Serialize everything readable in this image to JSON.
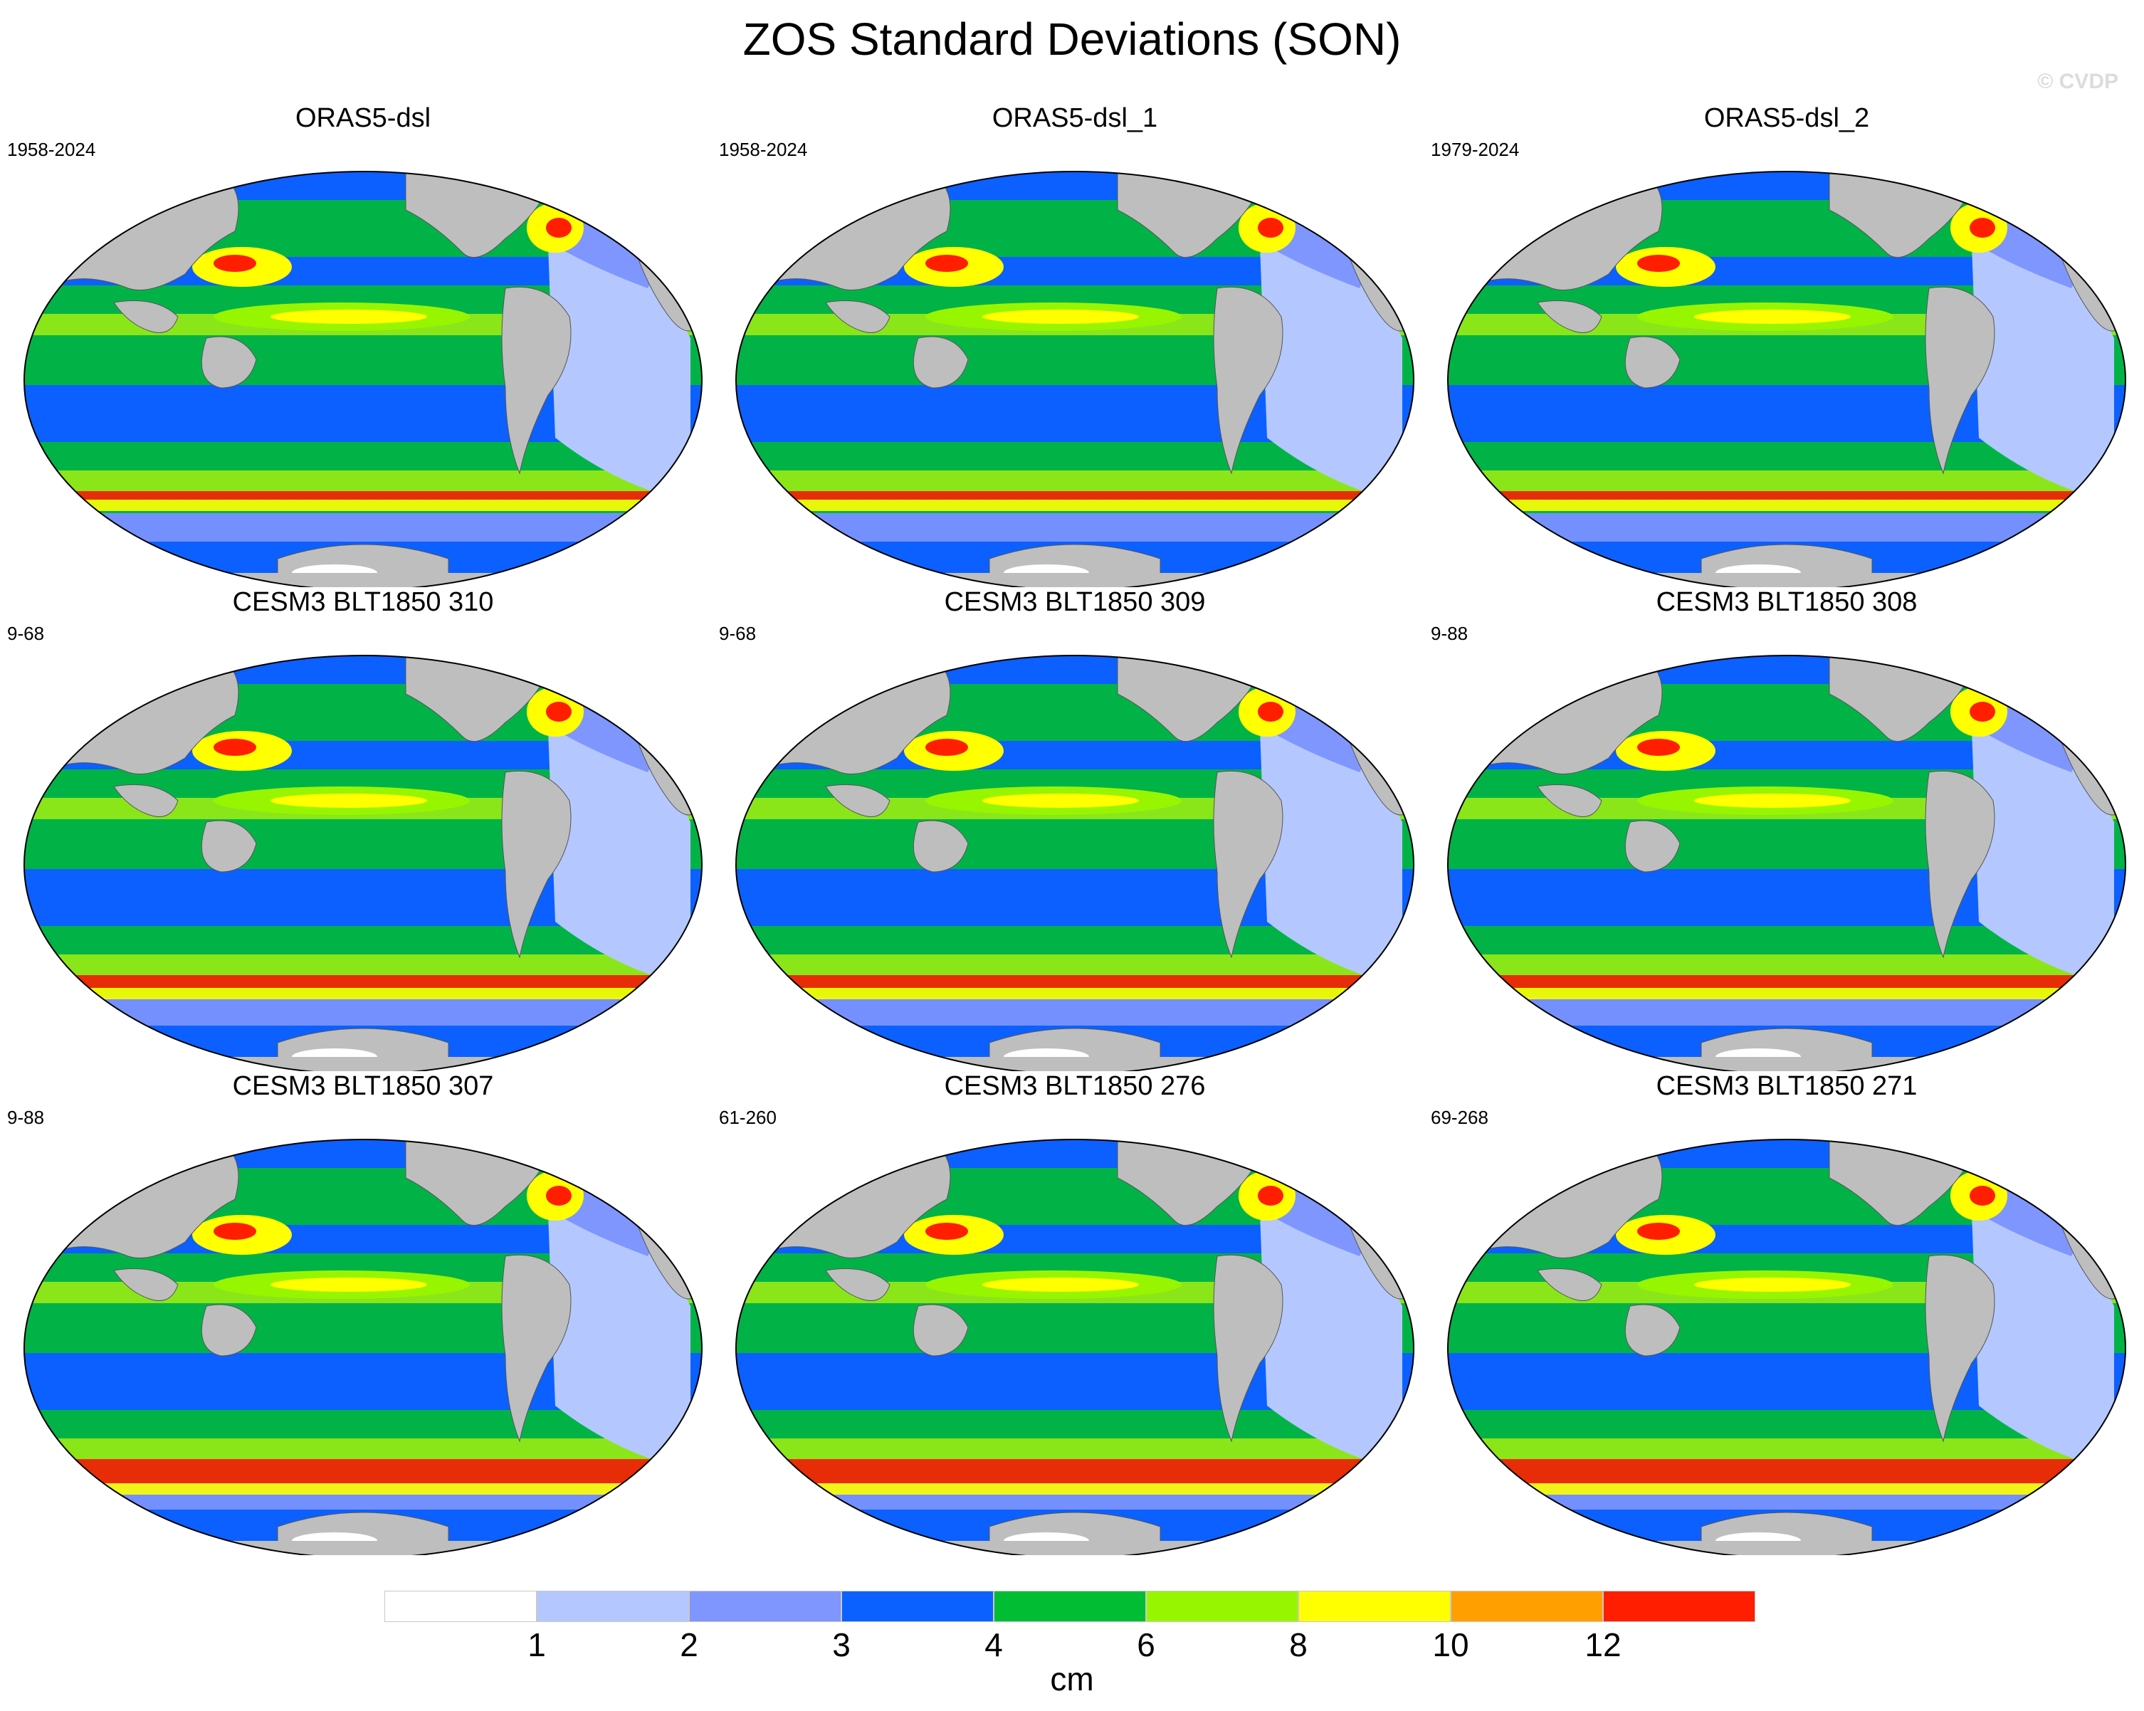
{
  "title": "ZOS Standard Deviations (SON)",
  "watermark": "© CVDP",
  "panels": [
    {
      "name": "ORAS5-dsl",
      "period": "1958-2024"
    },
    {
      "name": "ORAS5-dsl_1",
      "period": "1958-2024"
    },
    {
      "name": "ORAS5-dsl_2",
      "period": "1979-2024"
    },
    {
      "name": "CESM3 BLT1850 310",
      "period": "9-68"
    },
    {
      "name": "CESM3 BLT1850 309",
      "period": "9-68"
    },
    {
      "name": "CESM3 BLT1850 308",
      "period": "9-88"
    },
    {
      "name": "CESM3 BLT1850 307",
      "period": "9-88"
    },
    {
      "name": "CESM3 BLT1850 276",
      "period": "61-260"
    },
    {
      "name": "CESM3 BLT1850 271",
      "period": "69-268"
    }
  ],
  "colorbar": {
    "unit": "cm",
    "tick_labels": [
      "1",
      "2",
      "3",
      "4",
      "6",
      "8",
      "10",
      "12"
    ],
    "colors": [
      "#ffffff",
      "#b4c8ff",
      "#7f96ff",
      "#0b61ff",
      "#00bd33",
      "#98f500",
      "#ffff00",
      "#ffa000",
      "#ff1e00"
    ]
  },
  "land_color": "#bebebe"
}
